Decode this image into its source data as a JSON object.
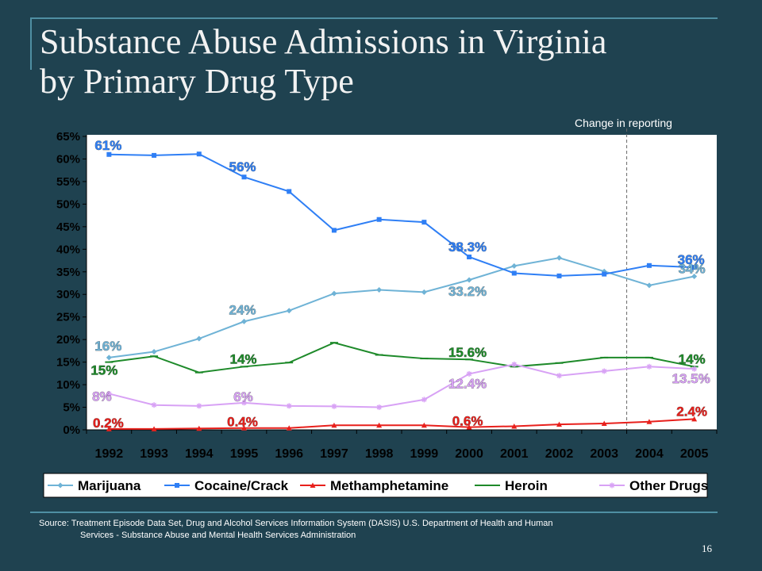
{
  "slide": {
    "title_line1": "Substance Abuse Admissions in Virginia",
    "title_line2": "by Primary Drug Type",
    "annotation": "Change in reporting",
    "source_line1": "Source: Treatment Episode Data Set, Drug and Alcohol Services Information System (DASIS) U.S. Department of Health and Human",
    "source_line2": "Services - Substance Abuse and Mental Health Services Administration",
    "page_number": "16"
  },
  "chart_data": {
    "type": "line",
    "categories": [
      "1992",
      "1993",
      "1994",
      "1995",
      "1996",
      "1997",
      "1998",
      "1999",
      "2000",
      "2001",
      "2002",
      "2003",
      "2004",
      "2005"
    ],
    "ylim": [
      0,
      65
    ],
    "y_ticks": [
      "0%",
      "5%",
      "10%",
      "15%",
      "20%",
      "25%",
      "30%",
      "35%",
      "40%",
      "45%",
      "50%",
      "55%",
      "60%",
      "65%"
    ],
    "grid": false,
    "legend_position": "bottom",
    "reporting_change_between": [
      "2003",
      "2004"
    ],
    "series": [
      {
        "name": "Marijuana",
        "color": "#6fb3d6",
        "marker": "diamond",
        "values": [
          16,
          17.3,
          20.2,
          24,
          26.4,
          30.2,
          31,
          30.5,
          33.2,
          36.3,
          38.1,
          35.1,
          32,
          34
        ],
        "labels": [
          {
            "index": 0,
            "text": "16%"
          },
          {
            "index": 3,
            "text": "24%"
          },
          {
            "index": 8,
            "text": "33.2%"
          },
          {
            "index": 13,
            "text": "34%"
          }
        ]
      },
      {
        "name": "Cocaine/Crack",
        "color": "#2f7ff5",
        "marker": "square",
        "values": [
          61,
          60.8,
          61.1,
          56,
          52.8,
          44.2,
          46.6,
          46,
          38.3,
          34.7,
          34.1,
          34.5,
          36.4,
          36
        ],
        "labels": [
          {
            "index": 0,
            "text": "61%"
          },
          {
            "index": 3,
            "text": "56%"
          },
          {
            "index": 8,
            "text": "38.3%"
          },
          {
            "index": 13,
            "text": "36%"
          }
        ]
      },
      {
        "name": "Methamphetamine",
        "color": "#e8201c",
        "marker": "triangle",
        "values": [
          0.2,
          0.2,
          0.3,
          0.4,
          0.4,
          1,
          1,
          1,
          0.6,
          0.8,
          1.2,
          1.4,
          1.8,
          2.4
        ],
        "labels": [
          {
            "index": 0,
            "text": "0.2%"
          },
          {
            "index": 3,
            "text": "0.4%"
          },
          {
            "index": 8,
            "text": "0.6%"
          },
          {
            "index": 13,
            "text": "2.4%"
          }
        ]
      },
      {
        "name": "Heroin",
        "color": "#1e8a2a",
        "marker": "dash",
        "values": [
          15,
          16.3,
          12.7,
          14,
          14.9,
          19.3,
          16.6,
          15.8,
          15.6,
          14,
          14.8,
          16,
          16,
          14
        ],
        "labels": [
          {
            "index": 0,
            "text": "15%"
          },
          {
            "index": 3,
            "text": "14%"
          },
          {
            "index": 8,
            "text": "15.6%"
          },
          {
            "index": 13,
            "text": "14%"
          }
        ]
      },
      {
        "name": "Other Drugs",
        "color": "#d8a2f5",
        "marker": "asterisk",
        "values": [
          8,
          5.5,
          5.3,
          6,
          5.3,
          5.2,
          5,
          6.7,
          12.4,
          14.5,
          12,
          13,
          14,
          13.5
        ],
        "labels": [
          {
            "index": 0,
            "text": "8%"
          },
          {
            "index": 3,
            "text": "6%"
          },
          {
            "index": 8,
            "text": "12.4%"
          },
          {
            "index": 13,
            "text": "13.5%"
          }
        ]
      }
    ]
  }
}
